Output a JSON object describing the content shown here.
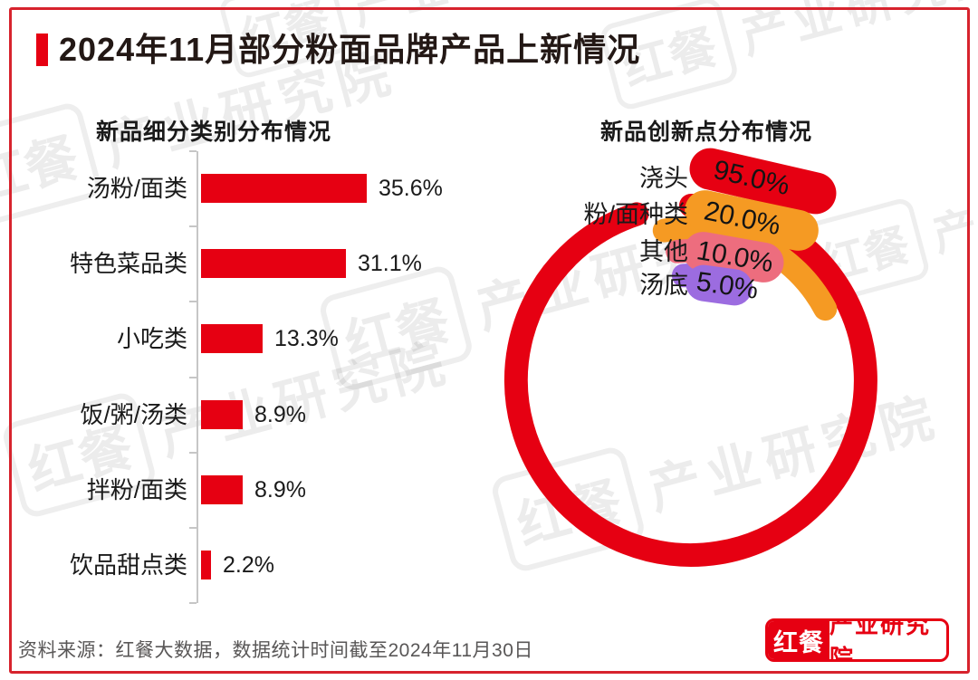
{
  "page": {
    "title": "2024年11月部分粉面品牌产品上新情况",
    "accent_color": "#e60012",
    "frame_color": "#d7232d"
  },
  "chart_data": [
    {
      "type": "bar",
      "orientation": "horizontal",
      "title": "新品细分类别分布情况",
      "categories": [
        "汤粉/面类",
        "特色菜品类",
        "小吃类",
        "饭/粥/汤类",
        "拌粉/面类",
        "饮品甜点类"
      ],
      "values": [
        35.6,
        31.1,
        13.3,
        8.9,
        8.9,
        2.2
      ],
      "value_labels": [
        "35.6%",
        "31.1%",
        "13.3%",
        "8.9%",
        "8.9%",
        "2.2%"
      ],
      "bar_color": "#e60012",
      "xlim": [
        0,
        40
      ],
      "grid": false
    },
    {
      "type": "pie",
      "subtype": "concentric-arc-donut",
      "title": "新品创新点分布情况",
      "categories": [
        "浇头",
        "粉/面种类",
        "其他",
        "汤底"
      ],
      "values": [
        95.0,
        20.0,
        10.0,
        5.0
      ],
      "value_labels": [
        "95.0%",
        "20.0%",
        "10.0%",
        "5.0%"
      ],
      "colors": [
        "#e60012",
        "#f59a23",
        "#ed6d7e",
        "#9c6ce0"
      ],
      "start": "top",
      "direction": "clockwise",
      "legend_position": "top-left-of-ring"
    }
  ],
  "footer": {
    "source": "资料来源：红餐大数据，数据统计时间截至2024年11月30日",
    "logo": {
      "brand": "红餐",
      "suffix": "产业研究院"
    }
  },
  "watermark": {
    "brand": "红餐",
    "text": "产业研究院"
  }
}
